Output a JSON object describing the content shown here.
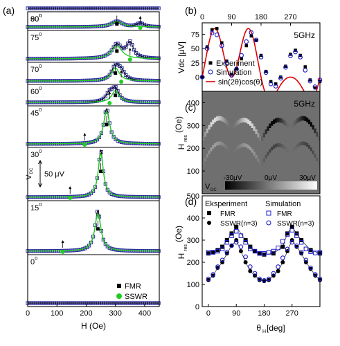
{
  "chart_data": [
    {
      "panel": "(a)",
      "type": "line",
      "xlabel": "H (Oe)",
      "xlim": [
        0,
        450
      ],
      "xticks": [
        0,
        100,
        200,
        300,
        400
      ],
      "scale_bar": {
        "symbol": "V",
        "subscript": "DC",
        "text": "50 μV"
      },
      "legend": [
        "FMR",
        "SSWR"
      ],
      "legend_position": "bottom-right",
      "traces": [
        {
          "angle": "90",
          "ssw": null,
          "res": null,
          "fmr_amp": 0,
          "ssw_amp": 0,
          "width": 20
        },
        {
          "angle": "80",
          "ssw": 385,
          "res": 305,
          "fmr_amp": 0.45,
          "ssw_amp": 0.3,
          "width": 22
        },
        {
          "angle": "75",
          "ssw": 350,
          "res": 305,
          "fmr_amp": 0.55,
          "ssw_amp": 0.6,
          "width": 20
        },
        {
          "angle": "70",
          "ssw": 320,
          "res": 300,
          "fmr_amp": 0.9,
          "ssw_amp": 0.55,
          "width": 15
        },
        {
          "angle": "60",
          "ssw": 280,
          "res": 300,
          "fmr_amp": 0.85,
          "ssw_amp": 0.55,
          "width": 14
        },
        {
          "angle": "45",
          "ssw": 195,
          "res": 270,
          "fmr_amp": 1,
          "ssw_amp": 0,
          "width": 12
        },
        {
          "angle": "30",
          "ssw": 145,
          "res": 250,
          "fmr_amp": 1,
          "ssw_amp": 0,
          "width": 10
        },
        {
          "angle": "15",
          "ssw": 120,
          "res": 240,
          "fmr_amp": 0.85,
          "ssw_amp": 0,
          "width": 12
        },
        {
          "angle": "0",
          "ssw": null,
          "res": null,
          "fmr_amp": 0,
          "ssw_amp": 0,
          "width": 20
        }
      ]
    },
    {
      "panel": "(b)",
      "type": "line",
      "ylabel": "Vdc [μV]",
      "annotation": "5GHz",
      "xlim": [
        0,
        360
      ],
      "ylim": [
        -25,
        95
      ],
      "xticks_top": [
        0,
        90,
        180,
        270
      ],
      "yticks": [
        0,
        25,
        50,
        75
      ],
      "legend": [
        "Experiment",
        "Simulation",
        "sin(2θ)cos(θ)"
      ],
      "series": [
        {
          "name": "Experiment",
          "marker": "filled-square",
          "x": [
            0,
            15,
            30,
            45,
            60,
            75,
            90,
            105,
            120,
            135,
            150,
            165,
            180,
            195,
            210,
            225,
            240,
            255,
            270,
            285,
            300,
            315,
            330,
            345,
            360
          ],
          "y": [
            0,
            53,
            83,
            85,
            60,
            28,
            5,
            15,
            32,
            55,
            72,
            64,
            38,
            10,
            -8,
            -12,
            0,
            19,
            40,
            47,
            38,
            18,
            -5,
            -19,
            -8
          ]
        },
        {
          "name": "Simulation",
          "marker": "open-circle",
          "x": [
            0,
            15,
            30,
            45,
            60,
            75,
            90,
            105,
            120,
            135,
            150,
            165,
            180,
            195,
            210,
            225,
            240,
            255,
            270,
            285,
            300,
            315,
            330,
            345,
            360
          ],
          "y": [
            0,
            50,
            77,
            74,
            55,
            25,
            3,
            14,
            38,
            62,
            78,
            65,
            35,
            8,
            -12,
            -16,
            -2,
            17,
            37,
            44,
            35,
            12,
            -7,
            -17,
            -5
          ]
        },
        {
          "name": "sin(2θ)cos(θ)",
          "line": "red",
          "function": "78*sin(2θ)*cos(θ) + 27*(1-cos(4θ))/2",
          "y": "computed"
        }
      ]
    },
    {
      "panel": "(c)",
      "type": "heatmap",
      "ylabel": "H_res (Oe)",
      "annotation": "5GHz",
      "ylim": [
        0,
        450
      ],
      "yticks": [
        100,
        200,
        300,
        400
      ],
      "colorbar": {
        "label": "V",
        "subscript": "DC",
        "ticks": [
          "-30μV",
          "0μV",
          "30μV"
        ]
      }
    },
    {
      "panel": "(d)",
      "type": "scatter",
      "xlabel": "θ_H [deg]",
      "ylabel": "H_res (Oe)",
      "xlim": [
        -20,
        360
      ],
      "ylim": [
        0,
        500
      ],
      "xticks": [
        0,
        90,
        180,
        270
      ],
      "yticks": [
        0,
        100,
        200,
        300,
        400,
        500
      ],
      "legend_headers": [
        "Eksperiment",
        "Simulation"
      ],
      "series": [
        {
          "name": "FMR",
          "group": "Eksperiment",
          "marker": "filled-square",
          "x": [
            0,
            15,
            30,
            45,
            60,
            75,
            90,
            120,
            135,
            150,
            165,
            180,
            210,
            240,
            255,
            270,
            285,
            300,
            330,
            360
          ],
          "y": [
            240,
            245,
            255,
            270,
            300,
            330,
            360,
            300,
            270,
            250,
            240,
            235,
            240,
            270,
            330,
            360,
            330,
            300,
            255,
            240
          ]
        },
        {
          "name": "SSWR(n=3)",
          "group": "Eksperiment",
          "marker": "filled-circle",
          "x": [
            0,
            15,
            30,
            45,
            60,
            75,
            90,
            105,
            120,
            135,
            150,
            165,
            180,
            195,
            210,
            225,
            240,
            255,
            270,
            285,
            300,
            315,
            330,
            345,
            360
          ],
          "y": [
            120,
            140,
            175,
            200,
            240,
            275,
            300,
            250,
            200,
            160,
            140,
            120,
            115,
            120,
            140,
            160,
            200,
            250,
            300,
            270,
            240,
            200,
            170,
            140,
            120
          ]
        },
        {
          "name": "FMR",
          "group": "Simulation",
          "marker": "open-square",
          "x": [
            0,
            15,
            30,
            45,
            60,
            75,
            90,
            105,
            120,
            135,
            150,
            165,
            180,
            195,
            210,
            225,
            240,
            255,
            270,
            285,
            300,
            315,
            330,
            345,
            360
          ],
          "y": [
            245,
            245,
            250,
            260,
            290,
            320,
            340,
            320,
            290,
            260,
            250,
            240,
            240,
            245,
            250,
            265,
            295,
            325,
            345,
            320,
            290,
            260,
            248,
            242,
            245
          ]
        },
        {
          "name": "SSWR(n=3)",
          "group": "Simulation",
          "marker": "open-circle",
          "x": [
            0,
            15,
            30,
            45,
            60,
            75,
            90,
            105,
            120,
            135,
            150,
            165,
            180,
            195,
            210,
            225,
            240,
            255,
            270,
            285,
            300,
            315,
            330,
            345,
            360
          ],
          "y": [
            125,
            145,
            180,
            210,
            245,
            275,
            290,
            270,
            225,
            180,
            150,
            125,
            118,
            125,
            150,
            180,
            220,
            260,
            290,
            275,
            245,
            210,
            175,
            145,
            125
          ]
        }
      ]
    }
  ],
  "panel_labels": {
    "a": "(a)",
    "b": "(b)",
    "c": "(c)",
    "d": "(d)"
  },
  "colors": {
    "experiment": "#000000",
    "simulation": "#1a1acc",
    "fit": "#e00000",
    "sswr": "#22cc22",
    "fmr_trace": "#2a2a9a"
  }
}
